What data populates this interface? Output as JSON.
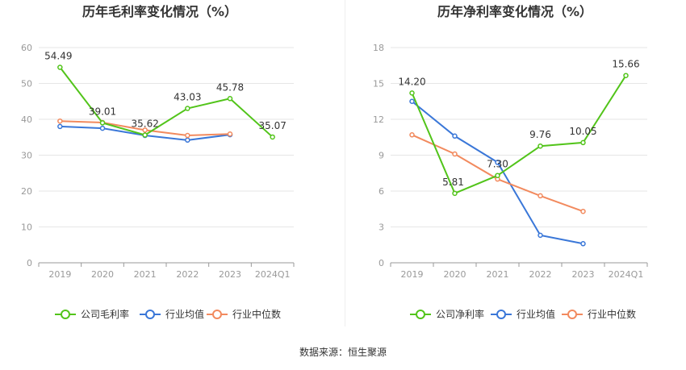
{
  "source_label": "数据来源：恒生聚源",
  "chart_data": [
    {
      "type": "line",
      "title": "历年毛利率变化情况（%）",
      "categories": [
        "2019",
        "2020",
        "2021",
        "2022",
        "2023",
        "2024Q1"
      ],
      "ylim": [
        0,
        60
      ],
      "yticks": [
        0,
        10,
        20,
        30,
        40,
        50,
        60
      ],
      "grid": true,
      "legend_position": "bottom",
      "series": [
        {
          "name": "公司毛利率",
          "color": "#52c41a",
          "values": [
            54.49,
            39.01,
            35.62,
            43.03,
            45.78,
            35.07
          ],
          "labels": [
            "54.49",
            "39.01",
            "35.62",
            "43.03",
            "45.78",
            "35.07"
          ]
        },
        {
          "name": "行业均值",
          "color": "#3a77d8",
          "values": [
            38.0,
            37.5,
            35.5,
            34.2,
            35.7,
            null
          ]
        },
        {
          "name": "行业中位数",
          "color": "#f28a5e",
          "values": [
            39.5,
            39.1,
            37.0,
            35.5,
            35.9,
            null
          ]
        }
      ]
    },
    {
      "type": "line",
      "title": "历年净利率变化情况（%）",
      "categories": [
        "2019",
        "2020",
        "2021",
        "2022",
        "2023",
        "2024Q1"
      ],
      "ylim": [
        0,
        18
      ],
      "yticks": [
        0,
        3,
        6,
        9,
        12,
        15,
        18
      ],
      "grid": true,
      "legend_position": "bottom",
      "series": [
        {
          "name": "公司净利率",
          "color": "#52c41a",
          "values": [
            14.2,
            5.81,
            7.3,
            9.76,
            10.05,
            15.66
          ],
          "labels": [
            "14.20",
            "5.81",
            "7.30",
            "9.76",
            "10.05",
            "15.66"
          ]
        },
        {
          "name": "行业均值",
          "color": "#3a77d8",
          "values": [
            13.5,
            10.6,
            8.4,
            2.3,
            1.6,
            null
          ]
        },
        {
          "name": "行业中位数",
          "color": "#f28a5e",
          "values": [
            10.7,
            9.1,
            7.0,
            5.6,
            4.3,
            null
          ]
        }
      ]
    }
  ]
}
